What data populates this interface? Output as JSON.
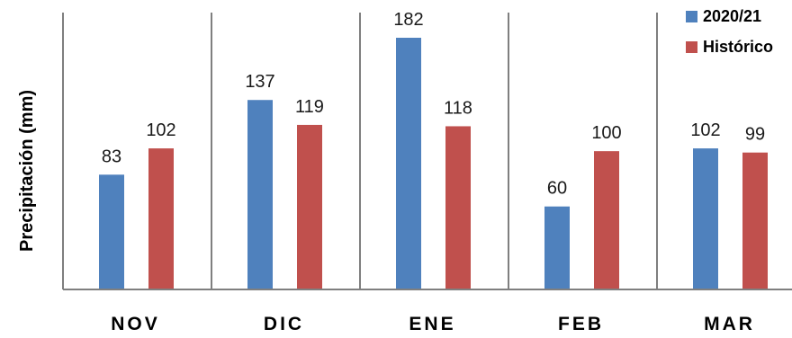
{
  "chart_data": {
    "type": "bar",
    "categories": [
      "NOV",
      "DIC",
      "ENE",
      "FEB",
      "MAR"
    ],
    "series": [
      {
        "name": "2020/21",
        "values": [
          83,
          137,
          182,
          60,
          102
        ],
        "color": "#4F81BD"
      },
      {
        "name": "Histórico",
        "values": [
          102,
          119,
          118,
          100,
          99
        ],
        "color": "#C0504D"
      }
    ],
    "title": "",
    "xlabel": "",
    "ylabel": "Precipitación (mm)",
    "ylim": [
      0,
      182
    ],
    "grid": "vertical separators between categories",
    "legend_position": "top-right",
    "data_labels": true
  }
}
